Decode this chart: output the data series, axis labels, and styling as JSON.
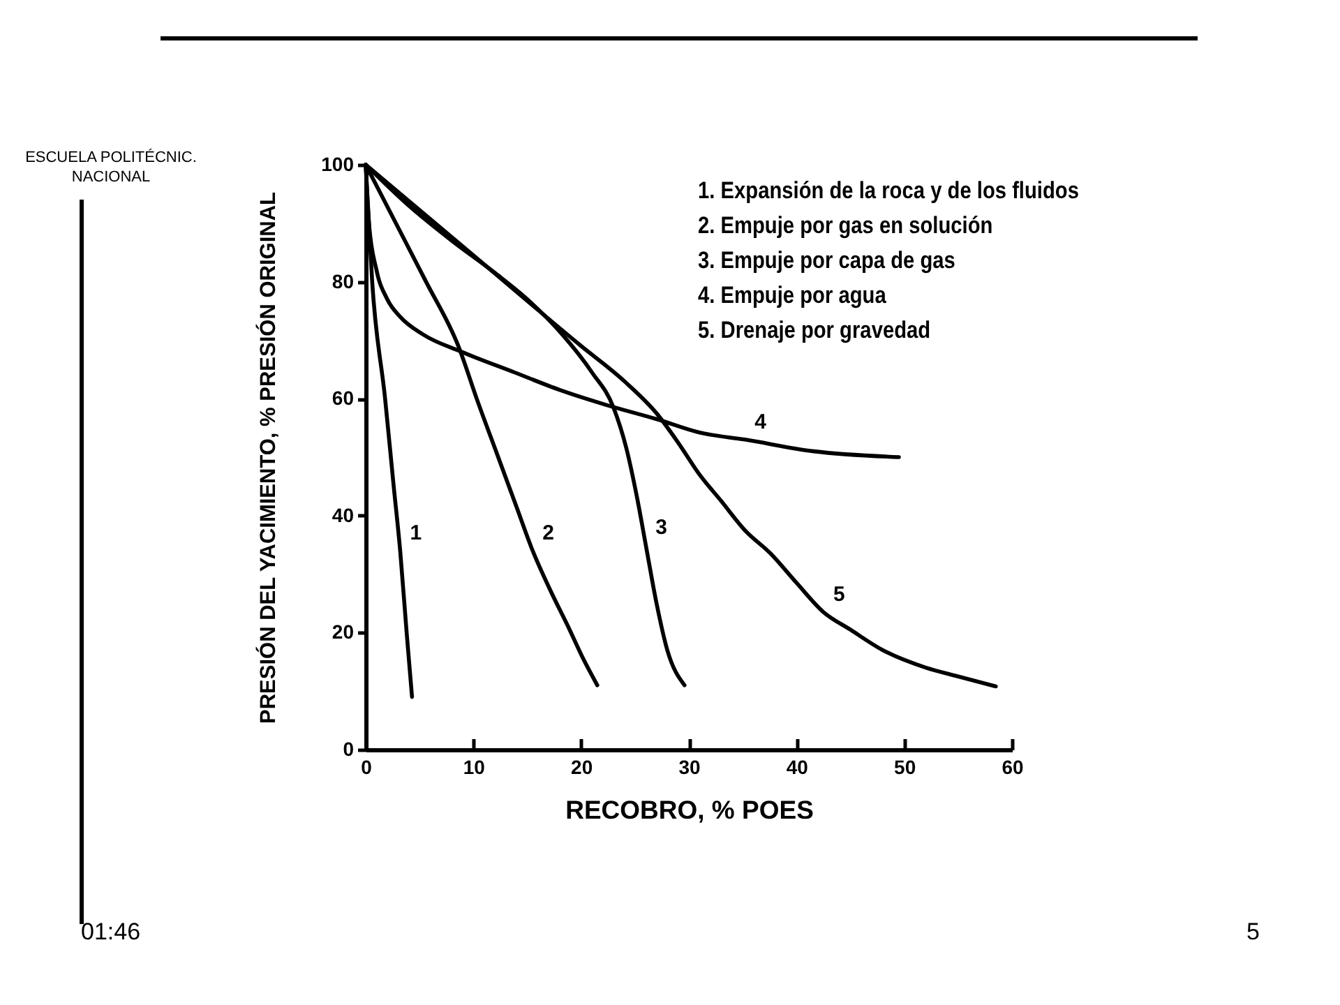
{
  "chart_data": {
    "type": "line",
    "xlabel": "RECOBRO, % POES",
    "ylabel": "PRESIÓN DEL YACIMIENTO, % PRESIÓN ORIGINAL",
    "xlim": [
      0,
      60
    ],
    "ylim": [
      0,
      100
    ],
    "xticks": [
      0,
      10,
      20,
      30,
      40,
      50,
      60
    ],
    "yticks": [
      0,
      20,
      40,
      60,
      80,
      100
    ],
    "grid": false,
    "legend": false,
    "line_style": "solid",
    "series": [
      {
        "name": "1",
        "color": "#000000",
        "x": [
          0,
          0.6,
          1.8,
          2.6,
          3.2,
          3.8,
          4.3
        ],
        "values": [
          100,
          80,
          60,
          45,
          34,
          20,
          9
        ]
      },
      {
        "name": "2",
        "color": "#000000",
        "x": [
          0,
          2.8,
          5.6,
          8.6,
          10.4,
          12.2,
          14,
          15.5,
          17.2,
          18.8,
          20.2,
          21.5
        ],
        "values": [
          100,
          90,
          80,
          69,
          59.5,
          50.5,
          41.5,
          34,
          27,
          21,
          15.5,
          11
        ]
      },
      {
        "name": "3",
        "color": "#000000",
        "x": [
          0,
          4,
          8,
          12,
          15,
          18,
          21,
          23,
          24.2,
          25.2,
          26,
          27,
          28,
          29.6
        ],
        "values": [
          100,
          93,
          87,
          81.5,
          77,
          71.5,
          64.5,
          58.5,
          51.5,
          43,
          35,
          25,
          17,
          11
        ]
      },
      {
        "name": "4",
        "color": "#000000",
        "x": [
          0,
          0.3,
          1,
          2,
          3.2,
          5.3,
          8.9,
          13.8,
          18,
          22.2,
          27,
          31,
          35.2,
          41.6,
          49.5
        ],
        "values": [
          100,
          90,
          82,
          77,
          74,
          71,
          68,
          64.5,
          61.5,
          59,
          56.5,
          54.2,
          53,
          51,
          50
        ]
      },
      {
        "name": "5",
        "color": "#000000",
        "x": [
          0,
          10,
          20,
          24,
          27,
          29,
          31,
          33,
          35.2,
          37.6,
          40,
          42.5,
          45,
          48,
          52,
          55,
          58.5
        ],
        "values": [
          100,
          84.5,
          69,
          63,
          57.5,
          52.5,
          47,
          42.5,
          37.5,
          33.5,
          28.5,
          23.5,
          20.5,
          17,
          14,
          12.5,
          10.8
        ]
      }
    ],
    "annotations": [
      "ESCUELA POLITÉCNIC. NACIONAL",
      "1. Expansión de la roca y de los fluidos",
      "2. Empuje por gas en solución",
      "3. Empuje por capa de gas",
      "4. Empuje por agua",
      "5. Drenaje por gravedad",
      "01:46",
      "5"
    ]
  }
}
